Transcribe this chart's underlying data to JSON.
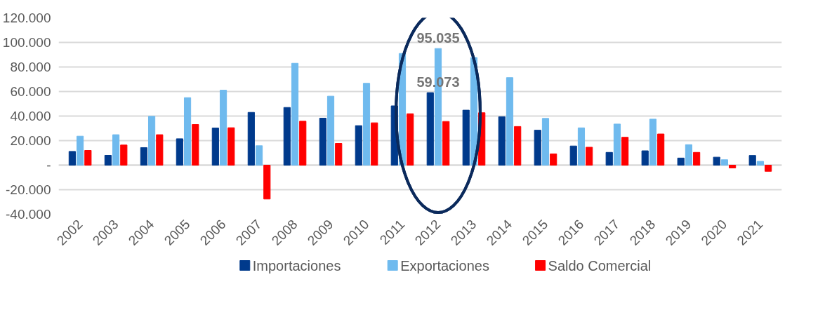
{
  "chart_data": {
    "type": "bar",
    "categories": [
      "2002",
      "2003",
      "2004",
      "2005",
      "2006",
      "2007",
      "2008",
      "2009",
      "2010",
      "2011",
      "2012",
      "2013",
      "2014",
      "2015",
      "2016",
      "2017",
      "2018",
      "2019",
      "2020",
      "2021"
    ],
    "series": [
      {
        "name": "Importaciones",
        "color": "#003a8c",
        "values": [
          11200,
          8000,
          14300,
          21500,
          30300,
          43000,
          47000,
          38300,
          32200,
          48300,
          59073,
          44800,
          39400,
          28500,
          15600,
          10400,
          11700,
          5800,
          6500,
          7900
        ]
      },
      {
        "name": "Exportaciones",
        "color": "#6fbaee",
        "values": [
          23600,
          24800,
          39800,
          55000,
          61100,
          15800,
          83000,
          56200,
          66700,
          91000,
          95035,
          87700,
          71300,
          38100,
          30400,
          33500,
          37500,
          16700,
          4400,
          3100
        ]
      },
      {
        "name": "Saldo Comercial",
        "color": "#ff0000",
        "values": [
          12000,
          16400,
          24800,
          33100,
          30500,
          -27600,
          35800,
          17700,
          34500,
          41900,
          35600,
          42700,
          31500,
          9200,
          14600,
          22700,
          25400,
          10400,
          -2300,
          -5000
        ]
      }
    ],
    "ylim": [
      -40000,
      120000
    ],
    "yticks": [
      {
        "value": -40000,
        "label": "-40.000"
      },
      {
        "value": -20000,
        "label": "-20.000"
      },
      {
        "value": 0,
        "label": "-"
      },
      {
        "value": 20000,
        "label": "20.000"
      },
      {
        "value": 40000,
        "label": "40.000"
      },
      {
        "value": 60000,
        "label": "60.000"
      },
      {
        "value": 80000,
        "label": "80.000"
      },
      {
        "value": 100000,
        "label": "100.000"
      },
      {
        "value": 120000,
        "label": "120.000"
      }
    ],
    "annotations": [
      {
        "text": "95.035",
        "x": "2012",
        "y": 95035
      },
      {
        "text": "59.073",
        "x": "2012",
        "y": 59073
      }
    ],
    "grid": "y",
    "legend": "bottom"
  }
}
